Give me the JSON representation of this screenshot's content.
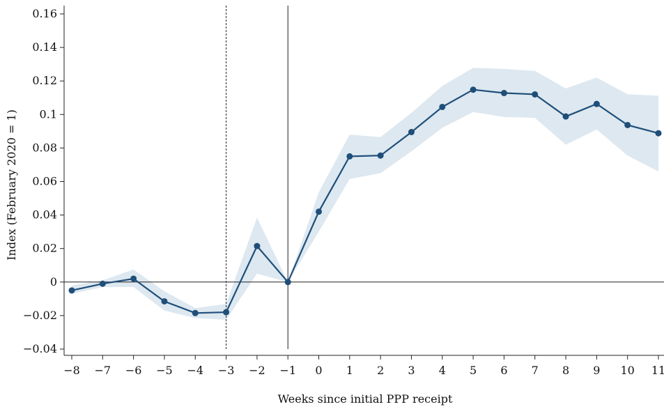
{
  "chart_data": {
    "type": "line",
    "xlabel": "Weeks since initial PPP receipt",
    "ylabel": "Index (February 2020 = 1)",
    "xlim": [
      -8,
      11
    ],
    "ylim": [
      -0.04,
      0.16
    ],
    "x_ticks": [
      -8,
      -7,
      -6,
      -5,
      -4,
      -3,
      -2,
      -1,
      0,
      1,
      2,
      3,
      4,
      5,
      6,
      7,
      8,
      9,
      10,
      11
    ],
    "x_tick_labels": [
      "−8",
      "−7",
      "−6",
      "−5",
      "−4",
      "−3",
      "−2",
      "−1",
      "0",
      "1",
      "2",
      "3",
      "4",
      "5",
      "6",
      "7",
      "8",
      "9",
      "10",
      "11"
    ],
    "y_ticks": [
      -0.04,
      -0.02,
      0,
      0.02,
      0.04,
      0.06,
      0.08,
      0.1,
      0.12,
      0.14,
      0.16
    ],
    "y_tick_labels": [
      "−0.04",
      "−0.02",
      "0",
      "0.02",
      "0.04",
      "0.06",
      "0.08",
      "0.1",
      "0.12",
      "0.14",
      "0.16"
    ],
    "grid": false,
    "reference_lines": [
      {
        "axis": "x",
        "value": -3,
        "style": "dashed"
      },
      {
        "axis": "x",
        "value": -1,
        "style": "solid"
      },
      {
        "axis": "y",
        "value": 0,
        "style": "solid"
      }
    ],
    "series": [
      {
        "x": [
          -8,
          -7,
          -6,
          -5,
          -4,
          -3,
          -2,
          -1,
          0,
          1,
          2,
          3,
          4,
          5,
          6,
          7,
          8,
          9,
          10,
          11
        ],
        "values": [
          -0.005,
          -0.001,
          0.002,
          -0.0115,
          -0.0185,
          -0.018,
          0.0215,
          0.0,
          0.042,
          0.075,
          0.0755,
          0.0895,
          0.1045,
          0.1148,
          0.1128,
          0.112,
          0.0988,
          0.1063,
          0.0937,
          0.0888
        ],
        "ci_lower": [
          -0.007,
          -0.003,
          -0.003,
          -0.017,
          -0.0215,
          -0.0225,
          0.005,
          0.0,
          0.03,
          0.0615,
          0.065,
          0.078,
          0.092,
          0.1015,
          0.0985,
          0.098,
          0.082,
          0.091,
          0.0755,
          0.066
        ],
        "ci_upper": [
          -0.002,
          0.001,
          0.0075,
          -0.0055,
          -0.0155,
          -0.013,
          0.0385,
          0.0,
          0.0535,
          0.088,
          0.0865,
          0.101,
          0.117,
          0.1278,
          0.1272,
          0.126,
          0.1155,
          0.122,
          0.112,
          0.1112
        ],
        "line_color": "#1f4e79",
        "band_color": "#dde8f0"
      }
    ]
  }
}
